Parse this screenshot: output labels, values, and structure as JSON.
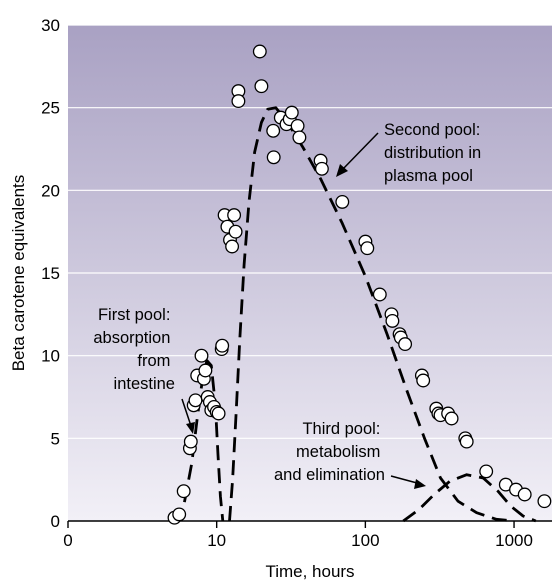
{
  "chart_data": {
    "type": "scatter",
    "title": "",
    "xlabel": "Time, hours",
    "ylabel": "Beta carotene equivalents",
    "x_scale": "log",
    "xlim": [
      1,
      1800
    ],
    "ylim": [
      0,
      30
    ],
    "x_ticks": [
      {
        "value": 1,
        "label": "0"
      },
      {
        "value": 10,
        "label": "10"
      },
      {
        "value": 100,
        "label": "100"
      },
      {
        "value": 1000,
        "label": "1000"
      }
    ],
    "y_ticks": [
      0,
      5,
      10,
      15,
      20,
      25,
      30
    ],
    "grid": "horizontal",
    "background": {
      "top": "#a9a1c3",
      "bottom": "#f2f0f7",
      "grid_color": "#ffffff"
    },
    "series": [
      {
        "kind": "points",
        "marker": "open-circle",
        "points": [
          [
            5.2,
            0.2
          ],
          [
            5.6,
            0.4
          ],
          [
            6.0,
            1.8
          ],
          [
            6.6,
            4.4
          ],
          [
            6.7,
            4.8
          ],
          [
            7.0,
            7.0
          ],
          [
            7.2,
            7.3
          ],
          [
            7.4,
            8.8
          ],
          [
            7.9,
            10.0
          ],
          [
            8.2,
            8.6
          ],
          [
            8.4,
            9.1
          ],
          [
            8.7,
            7.5
          ],
          [
            9.0,
            7.2
          ],
          [
            9.2,
            6.7
          ],
          [
            9.6,
            6.9
          ],
          [
            10.0,
            6.6
          ],
          [
            10.3,
            6.5
          ],
          [
            10.8,
            10.4
          ],
          [
            10.9,
            10.6
          ],
          [
            11.3,
            18.5
          ],
          [
            11.8,
            17.8
          ],
          [
            12.3,
            17.0
          ],
          [
            12.7,
            16.6
          ],
          [
            13.1,
            18.5
          ],
          [
            13.4,
            17.5
          ],
          [
            14.0,
            26.0
          ],
          [
            14.0,
            25.4
          ],
          [
            19.5,
            28.4
          ],
          [
            20.0,
            26.3
          ],
          [
            24.0,
            23.6
          ],
          [
            24.2,
            22.0
          ],
          [
            27.0,
            24.4
          ],
          [
            29.5,
            24.0
          ],
          [
            31.0,
            24.3
          ],
          [
            32.0,
            24.7
          ],
          [
            35.0,
            23.9
          ],
          [
            36.0,
            23.2
          ],
          [
            50.0,
            21.8
          ],
          [
            51.0,
            21.3
          ],
          [
            70.0,
            19.3
          ],
          [
            100.0,
            16.9
          ],
          [
            103.0,
            16.5
          ],
          [
            125.0,
            13.7
          ],
          [
            150.0,
            12.5
          ],
          [
            152.0,
            12.1
          ],
          [
            170.0,
            11.3
          ],
          [
            173.0,
            11.1
          ],
          [
            185.0,
            10.7
          ],
          [
            240.0,
            8.8
          ],
          [
            245.0,
            8.5
          ],
          [
            300.0,
            6.8
          ],
          [
            310.0,
            6.5
          ],
          [
            320.0,
            6.4
          ],
          [
            360.0,
            6.5
          ],
          [
            380.0,
            6.2
          ],
          [
            470.0,
            5.0
          ],
          [
            480.0,
            4.8
          ],
          [
            650.0,
            3.0
          ],
          [
            880.0,
            2.2
          ],
          [
            1030.0,
            1.9
          ],
          [
            1180.0,
            1.6
          ],
          [
            1600.0,
            1.2
          ]
        ]
      },
      {
        "kind": "dashed-curve",
        "name": "first-pool",
        "points": [
          [
            5.0,
            0.0
          ],
          [
            6.0,
            0.9
          ],
          [
            6.8,
            3.5
          ],
          [
            7.4,
            6.2
          ],
          [
            8.0,
            8.5
          ],
          [
            8.6,
            9.7
          ],
          [
            9.2,
            9.4
          ],
          [
            9.8,
            7.0
          ],
          [
            10.2,
            4.0
          ],
          [
            10.6,
            1.5
          ],
          [
            11.0,
            0.0
          ]
        ]
      },
      {
        "kind": "dashed-curve",
        "name": "second-pool",
        "points": [
          [
            12.2,
            0.0
          ],
          [
            12.8,
            2.5
          ],
          [
            13.5,
            6.5
          ],
          [
            14.3,
            11.0
          ],
          [
            15.3,
            15.5
          ],
          [
            16.5,
            19.3
          ],
          [
            18.0,
            22.3
          ],
          [
            20.0,
            24.1
          ],
          [
            22.0,
            24.9
          ],
          [
            25.0,
            25.0
          ],
          [
            30.0,
            24.1
          ],
          [
            38.0,
            22.6
          ],
          [
            50.0,
            20.7
          ],
          [
            70.0,
            18.0
          ],
          [
            100.0,
            14.8
          ],
          [
            140.0,
            11.3
          ],
          [
            190.0,
            7.9
          ],
          [
            250.0,
            5.0
          ],
          [
            320.0,
            2.6
          ],
          [
            420.0,
            1.2
          ],
          [
            560.0,
            0.5
          ],
          [
            760.0,
            0.1
          ],
          [
            1000.0,
            0.0
          ]
        ]
      },
      {
        "kind": "dashed-curve",
        "name": "third-pool",
        "points": [
          [
            180.0,
            0.0
          ],
          [
            230.0,
            0.7
          ],
          [
            290.0,
            1.6
          ],
          [
            370.0,
            2.4
          ],
          [
            480.0,
            2.8
          ],
          [
            620.0,
            2.6
          ],
          [
            780.0,
            1.8
          ],
          [
            950.0,
            0.9
          ],
          [
            1150.0,
            0.3
          ],
          [
            1400.0,
            0.0
          ]
        ]
      }
    ],
    "annotations": [
      {
        "lines": [
          "Second pool:",
          "distribution in",
          "plasma pool"
        ]
      },
      {
        "lines": [
          "First pool:",
          "absorption",
          "from",
          "intestine"
        ]
      },
      {
        "lines": [
          "Third pool:",
          "metabolism",
          "and elimination"
        ]
      }
    ]
  }
}
